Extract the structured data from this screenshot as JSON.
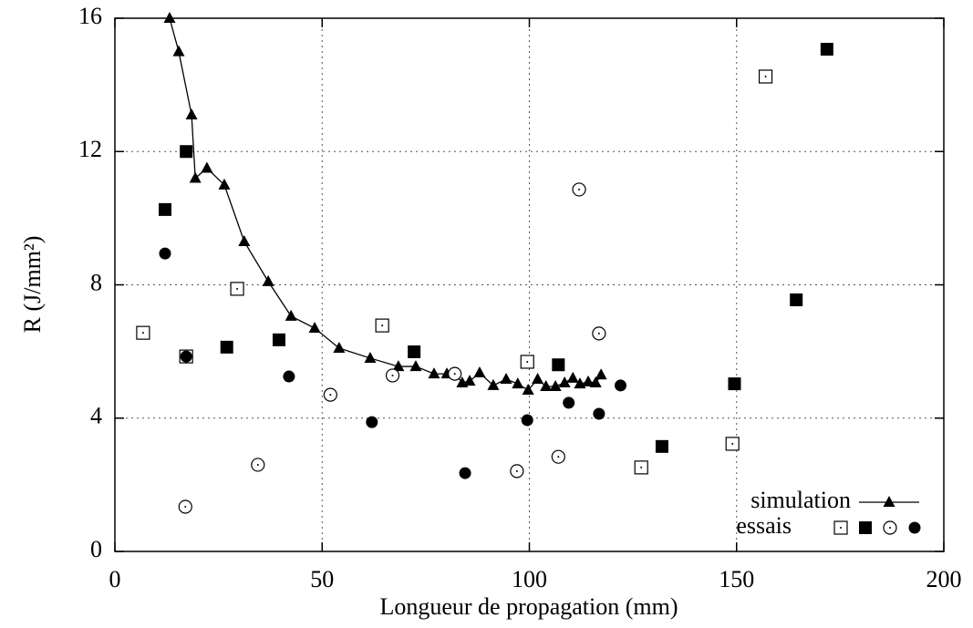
{
  "chart_data": {
    "type": "scatter",
    "xlabel": "Longueur de propagation (mm)",
    "ylabel": "R (J/mm²)",
    "xlim": [
      0,
      200
    ],
    "xticks": [
      0,
      50,
      100,
      150,
      200
    ],
    "ylim": [
      0,
      16
    ],
    "yticks": [
      0,
      4,
      8,
      12,
      16
    ],
    "grid": true,
    "legend": [
      "simulation",
      "essais"
    ],
    "legend_position": "lower right",
    "series": [
      {
        "name": "simulation",
        "color": "#000000",
        "marker": "triangle",
        "line": true,
        "x": [
          13.2,
          15.4,
          18.5,
          19.4,
          22.2,
          26.4,
          31.2,
          37,
          42.5,
          48.2,
          54.1,
          61.6,
          68.4,
          72.6,
          77,
          80.1,
          82,
          83.8,
          85.6,
          88,
          91.3,
          94.4,
          97.2,
          99.7,
          102,
          104,
          106.3,
          108.5,
          110.5,
          112.2,
          114.2,
          116,
          117.3
        ],
        "values": [
          16,
          15.0,
          13.1,
          11.2,
          11.5,
          11.0,
          9.3,
          8.1,
          7.06,
          6.7,
          6.1,
          5.8,
          5.55,
          5.55,
          5.33,
          5.33,
          5.36,
          5.06,
          5.11,
          5.36,
          4.98,
          5.17,
          5.03,
          4.84,
          5.17,
          4.95,
          4.95,
          5.06,
          5.2,
          5.03,
          5.09,
          5.06,
          5.3
        ]
      },
      {
        "color": "#000000",
        "marker": "open-square",
        "x": [
          6.8,
          17.2,
          29.5,
          64.5,
          99.5,
          127,
          149,
          157
        ],
        "values": [
          6.56,
          5.85,
          7.88,
          6.78,
          5.69,
          2.52,
          3.23,
          14.25
        ]
      },
      {
        "color": "#000000",
        "marker": "filled-square",
        "x": [
          12.1,
          17.2,
          27,
          39.6,
          72.2,
          107,
          132,
          149.5,
          164.4,
          171.8
        ],
        "values": [
          10.26,
          12.0,
          6.13,
          6.35,
          5.99,
          5.6,
          3.15,
          5.03,
          7.55,
          15.07
        ]
      },
      {
        "color": "#000000",
        "marker": "open-circle",
        "x": [
          17,
          34.5,
          52,
          67,
          82,
          97,
          107,
          112,
          116.8
        ],
        "values": [
          1.34,
          2.6,
          4.7,
          5.28,
          5.33,
          2.41,
          2.84,
          10.86,
          6.54
        ]
      },
      {
        "color": "#000000",
        "marker": "filled-circle",
        "x": [
          12.1,
          17.2,
          42,
          62,
          84.5,
          99.5,
          109.5,
          116.8,
          122
        ],
        "values": [
          8.94,
          5.85,
          5.25,
          3.88,
          2.35,
          3.94,
          4.46,
          4.13,
          4.98
        ]
      }
    ]
  }
}
